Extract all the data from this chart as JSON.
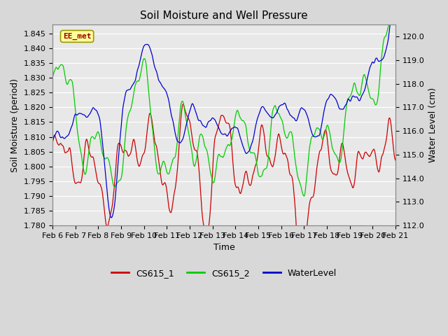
{
  "title": "Soil Moisture and Well Pressure",
  "xlabel": "Time",
  "ylabel_left": "Soil Moisture (period)",
  "ylabel_right": "Water Level (cm)",
  "ylim_left": [
    1.78,
    1.848
  ],
  "ylim_right": [
    112.0,
    120.5
  ],
  "yticks_left": [
    1.78,
    1.785,
    1.79,
    1.795,
    1.8,
    1.805,
    1.81,
    1.815,
    1.82,
    1.825,
    1.83,
    1.835,
    1.84,
    1.845
  ],
  "yticks_right": [
    112.0,
    113.0,
    114.0,
    115.0,
    116.0,
    117.0,
    118.0,
    119.0,
    120.0
  ],
  "color_cs1": "#cc0000",
  "color_cs2": "#00cc00",
  "color_wl": "#0000cc",
  "line_width": 0.9,
  "bg_color": "#d8d8d8",
  "plot_bg_color": "#e8e8e8",
  "annotation_text": "EE_met",
  "annotation_color": "#990000",
  "annotation_bg": "#ffff99",
  "annotation_border": "#999900",
  "legend_items": [
    "CS615_1",
    "CS615_2",
    "WaterLevel"
  ],
  "xtick_labels": [
    "Feb 6",
    "Feb 7",
    "Feb 8",
    "Feb 9",
    "Feb 10",
    "Feb 11",
    "Feb 12",
    "Feb 13",
    "Feb 14",
    "Feb 15",
    "Feb 16",
    "Feb 17",
    "Feb 18",
    "Feb 19",
    "Feb 20",
    "Feb 21"
  ],
  "title_fontsize": 11,
  "axis_fontsize": 9,
  "tick_fontsize": 8,
  "figsize": [
    6.4,
    4.8
  ],
  "dpi": 100
}
